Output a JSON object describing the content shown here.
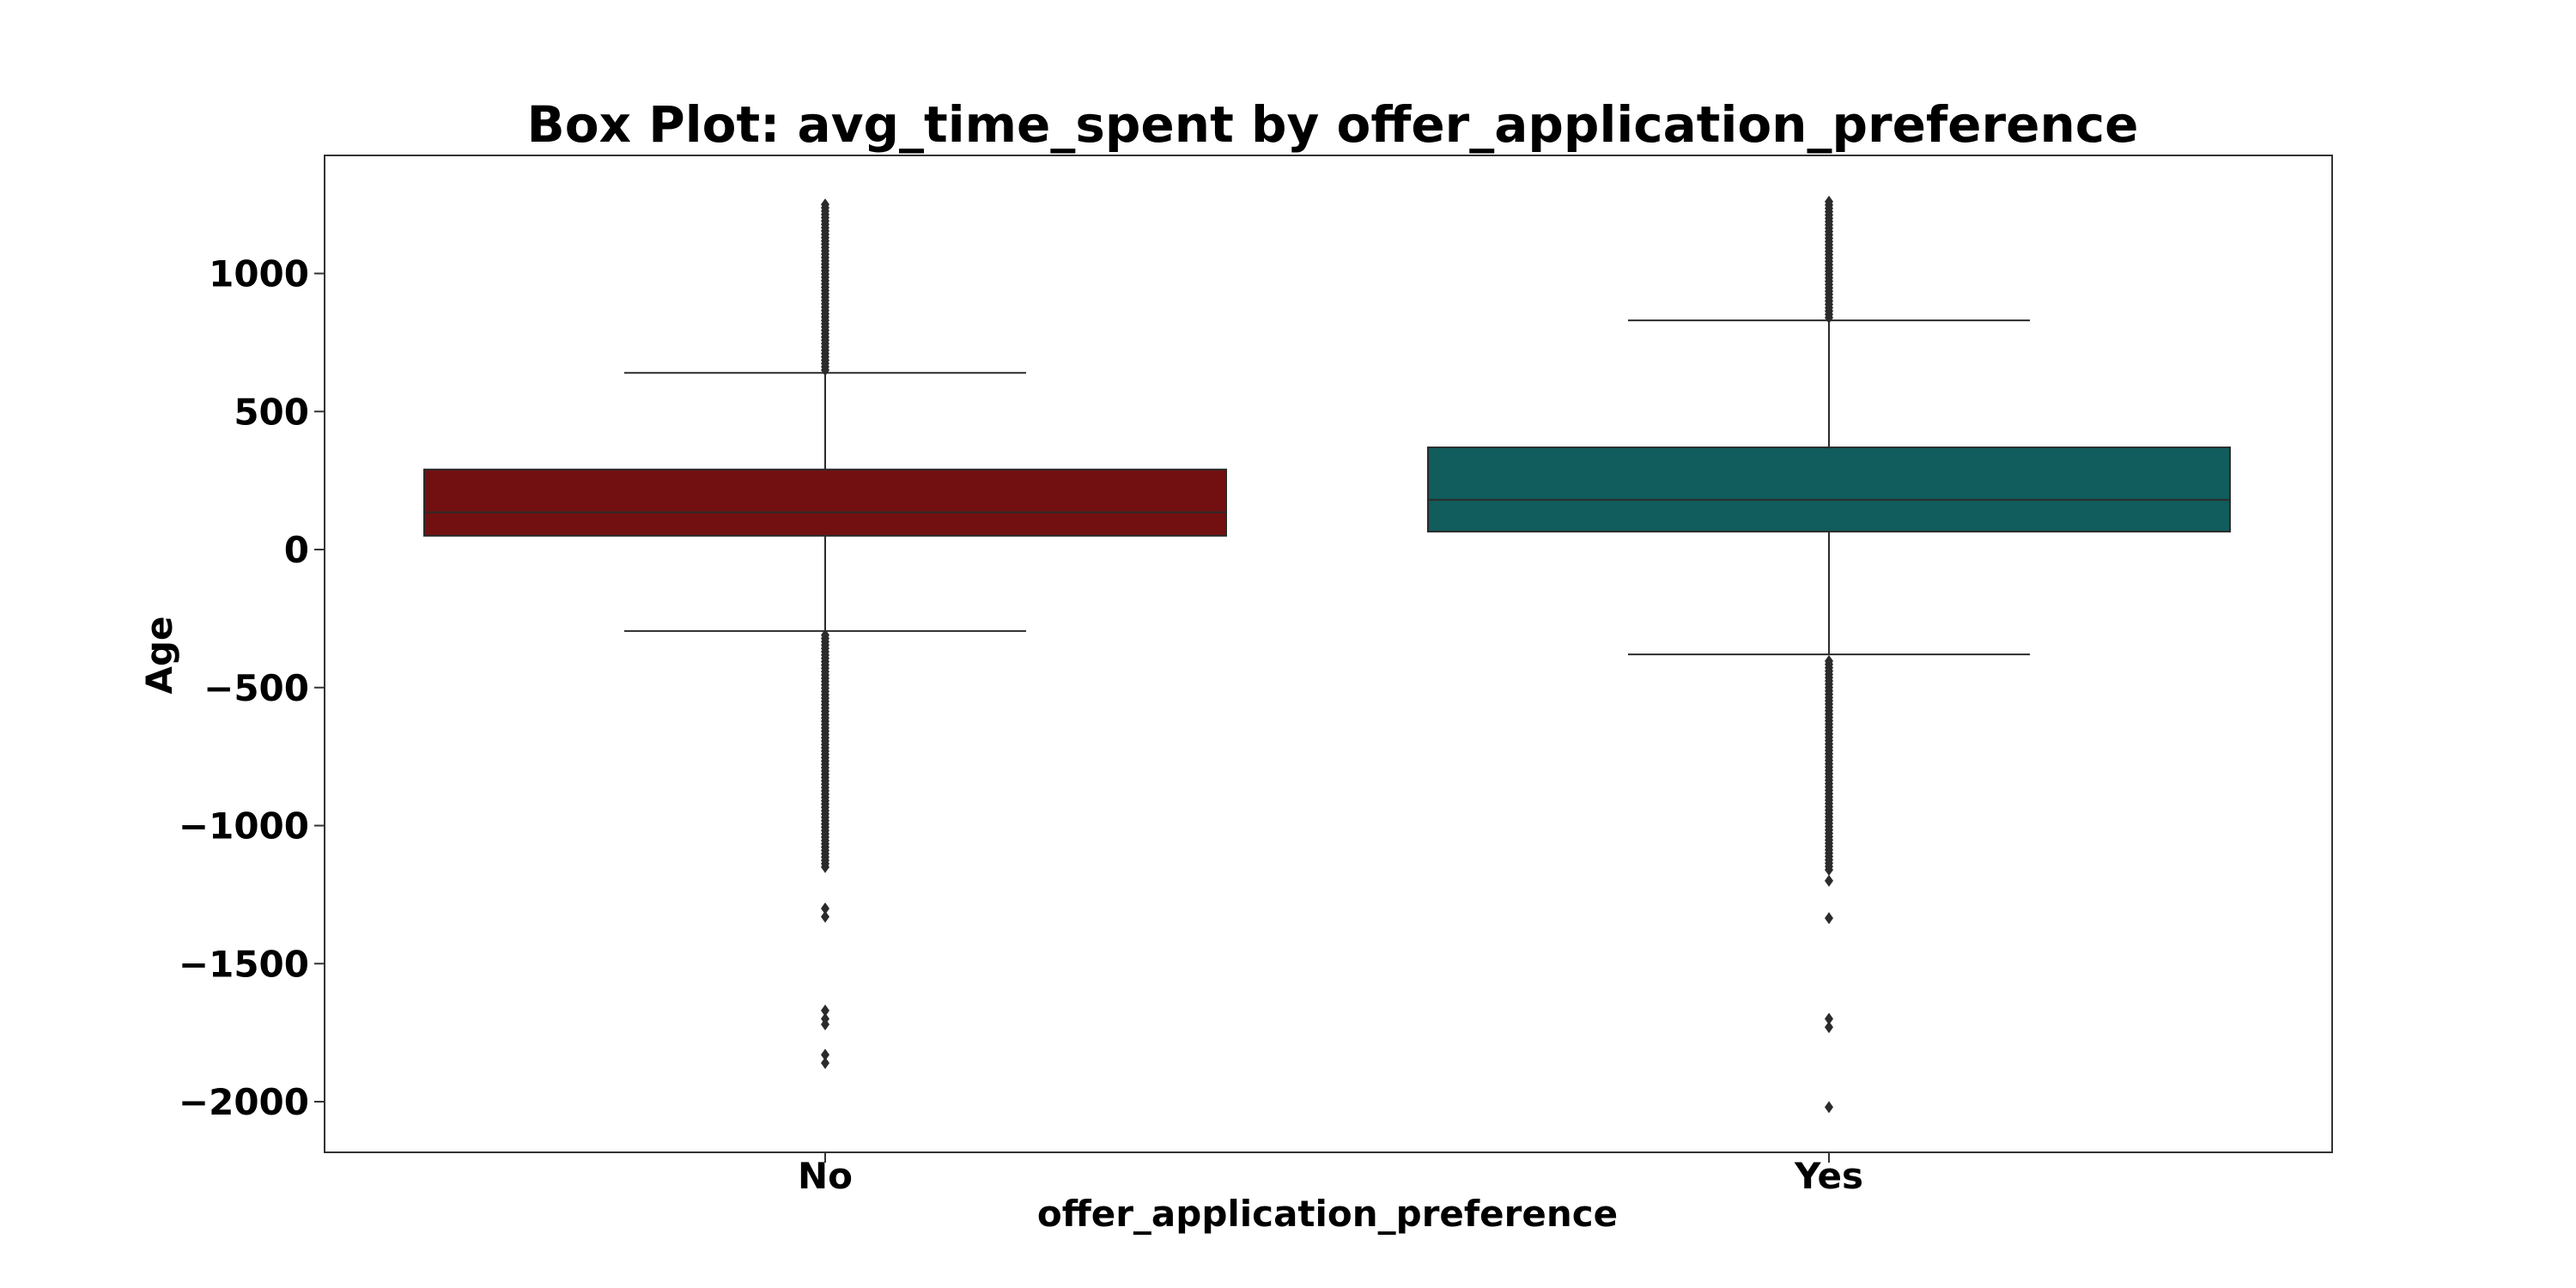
{
  "chart_data": {
    "type": "box",
    "title": "Box Plot: avg_time_spent by offer_application_preference",
    "xlabel": "offer_application_preference",
    "ylabel": "Age",
    "ylim": [
      -2200,
      1410
    ],
    "yticks": [
      1000,
      500,
      0,
      -500,
      -1000,
      -1500,
      -2000
    ],
    "ytick_labels": [
      "1000",
      "500",
      "0",
      "−500",
      "−1000",
      "−1500",
      "−2000"
    ],
    "categories": [
      "No",
      "Yes"
    ],
    "grid": false,
    "legend": "none",
    "boxes": [
      {
        "category": "No",
        "color": "#721011",
        "whisker_low": -295,
        "q1": 50,
        "median": 135,
        "q3": 290,
        "whisker_high": 640,
        "outliers_high_range": [
          650,
          1260
        ],
        "outliers_low_range": [
          -1150,
          -310
        ],
        "outliers_extra": [
          -1300,
          -1330,
          -1670,
          -1700,
          -1720,
          -1830,
          -1860
        ]
      },
      {
        "category": "Yes",
        "color": "#115c5c",
        "whisker_low": -380,
        "q1": 65,
        "median": 180,
        "q3": 370,
        "whisker_high": 830,
        "outliers_high_range": [
          840,
          1260
        ],
        "outliers_low_range": [
          -1160,
          -400
        ],
        "outliers_extra": [
          -1200,
          -1335,
          -1700,
          -1730,
          -2020
        ]
      }
    ]
  }
}
